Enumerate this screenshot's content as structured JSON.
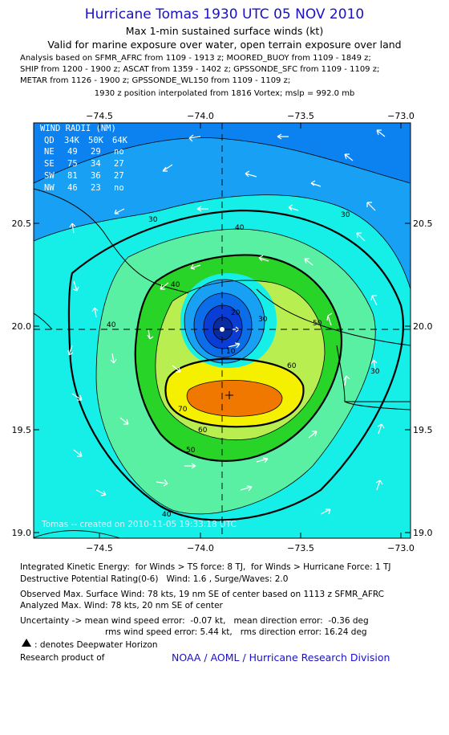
{
  "header": {
    "title": "Hurricane Tomas 1930 UTC 05 NOV 2010",
    "subtitle1": "Max 1-min sustained surface winds (kt)",
    "subtitle2": "Valid for marine exposure over water, open terrain exposure over land",
    "analysis_lines": [
      "Analysis based on SFMR_AFRC from 1109 - 1913 z; MOORED_BUOY from 1109 - 1849 z;",
      "SHIP from 1200 - 1900 z; ASCAT from 1359 - 1402 z; GPSSONDE_SFC from 1109 - 1109 z;",
      "METAR from 1126 - 1900 z; GPSSONDE_WL150 from 1109 - 1109 z;"
    ],
    "interp_line": "1930 z position interpolated from 1816 Vortex; mslp = 992.0 mb"
  },
  "map": {
    "lon_ticks": [
      "−74.5",
      "−74.0",
      "−73.5",
      "−73.0"
    ],
    "lat_ticks": [
      "20.5",
      "20.0",
      "19.5",
      "19.0"
    ],
    "lon_range": [
      -74.85,
      -72.95
    ],
    "lat_range": [
      19.0,
      20.98
    ],
    "center": {
      "lon": -73.9,
      "lat": 19.98
    },
    "contour_labels": [
      "30",
      "30",
      "30",
      "40",
      "40",
      "40",
      "40",
      "50",
      "50",
      "60",
      "60",
      "70",
      "20",
      "30",
      "10"
    ],
    "wind_radii": {
      "title": "WIND RADII (NM)",
      "header": [
        "QD",
        "34K",
        "50K",
        "64K"
      ],
      "rows": [
        [
          "NE",
          "49",
          "29",
          "no"
        ],
        [
          "SE",
          "75",
          "34",
          "27"
        ],
        [
          "SW",
          "81",
          "36",
          "27"
        ],
        [
          "NW",
          "46",
          "23",
          "no"
        ]
      ]
    },
    "created_text": "Tomas -- created on 2010-11-05 19:33:18 UTC",
    "colors": {
      "ocean_edge": "#0b82f0",
      "band_10_20": "#0a3cd6",
      "band_20_30": "#17a0f4",
      "band_30_40": "#16eee8",
      "band_40_50": "#5af0a4",
      "band_50_60": "#28d428",
      "band_60_70": "#b8ee50",
      "band_70_80": "#f5f000",
      "band_80_plus": "#f07800"
    }
  },
  "footer": {
    "ike": "Integrated Kinetic Energy:  for Winds > TS force: 8 TJ,  for Winds > Hurricane Force: 1 TJ",
    "dpr": "Destructive Potential Rating(0-6)   Wind: 1.6 , Surge/Waves: 2.0",
    "obs_max": "Observed Max. Surface Wind: 78 kts, 19 nm SE of center based on 1113 z SFMR_AFRC",
    "ana_max": "Analyzed Max. Wind: 78 kts, 20 nm SE of center",
    "uncert1": "Uncertainty -> mean wind speed error:  -0.07 kt,   mean direction error:  -0.36 deg",
    "uncert2": "rms wind speed error: 5.44 kt,   rms direction error: 16.24 deg",
    "deepwater": ": denotes Deepwater Horizon",
    "research": "Research product of",
    "noaa": "NOAA / AOML / Hurricane Research Division"
  }
}
